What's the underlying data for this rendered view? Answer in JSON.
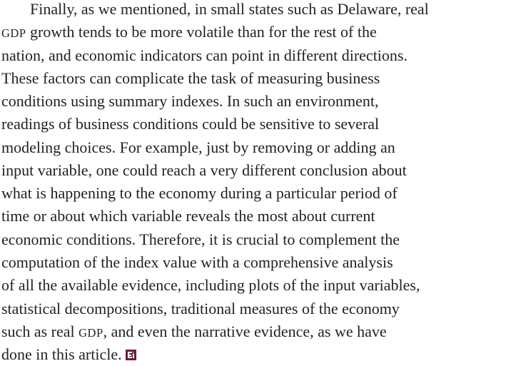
{
  "paragraph": {
    "lines": [
      [
        "Finally, as we mentioned, in small states such as Delaware, real"
      ],
      [
        {
          "text": "GDP",
          "style": "small-caps"
        },
        " growth tends to be more volatile than for the rest of the"
      ],
      [
        "nation, and economic indicators can point in different directions."
      ],
      [
        "These factors can complicate the task of measuring business"
      ],
      [
        "conditions using summary indexes. In such an environment,"
      ],
      [
        "readings of business conditions could be sensitive to several"
      ],
      [
        "modeling choices. For example, just by removing or adding an"
      ],
      [
        "input variable, one could reach a very different conclusion about"
      ],
      [
        "what is happening to the economy during a particular period of"
      ],
      [
        "time or about which variable reveals the most about current"
      ],
      [
        "economic conditions. Therefore, it is crucial to complement the"
      ],
      [
        "computation of the index value with a comprehensive analysis"
      ],
      [
        "of all the available evidence, including plots of the input variables,"
      ],
      [
        "statistical decompositions, traditional measures of the economy"
      ],
      [
        "such as real ",
        {
          "text": "GDP",
          "style": "small-caps"
        },
        ", and even the narrative evidence, as we have"
      ],
      [
        "done in this article. "
      ]
    ]
  }
}
